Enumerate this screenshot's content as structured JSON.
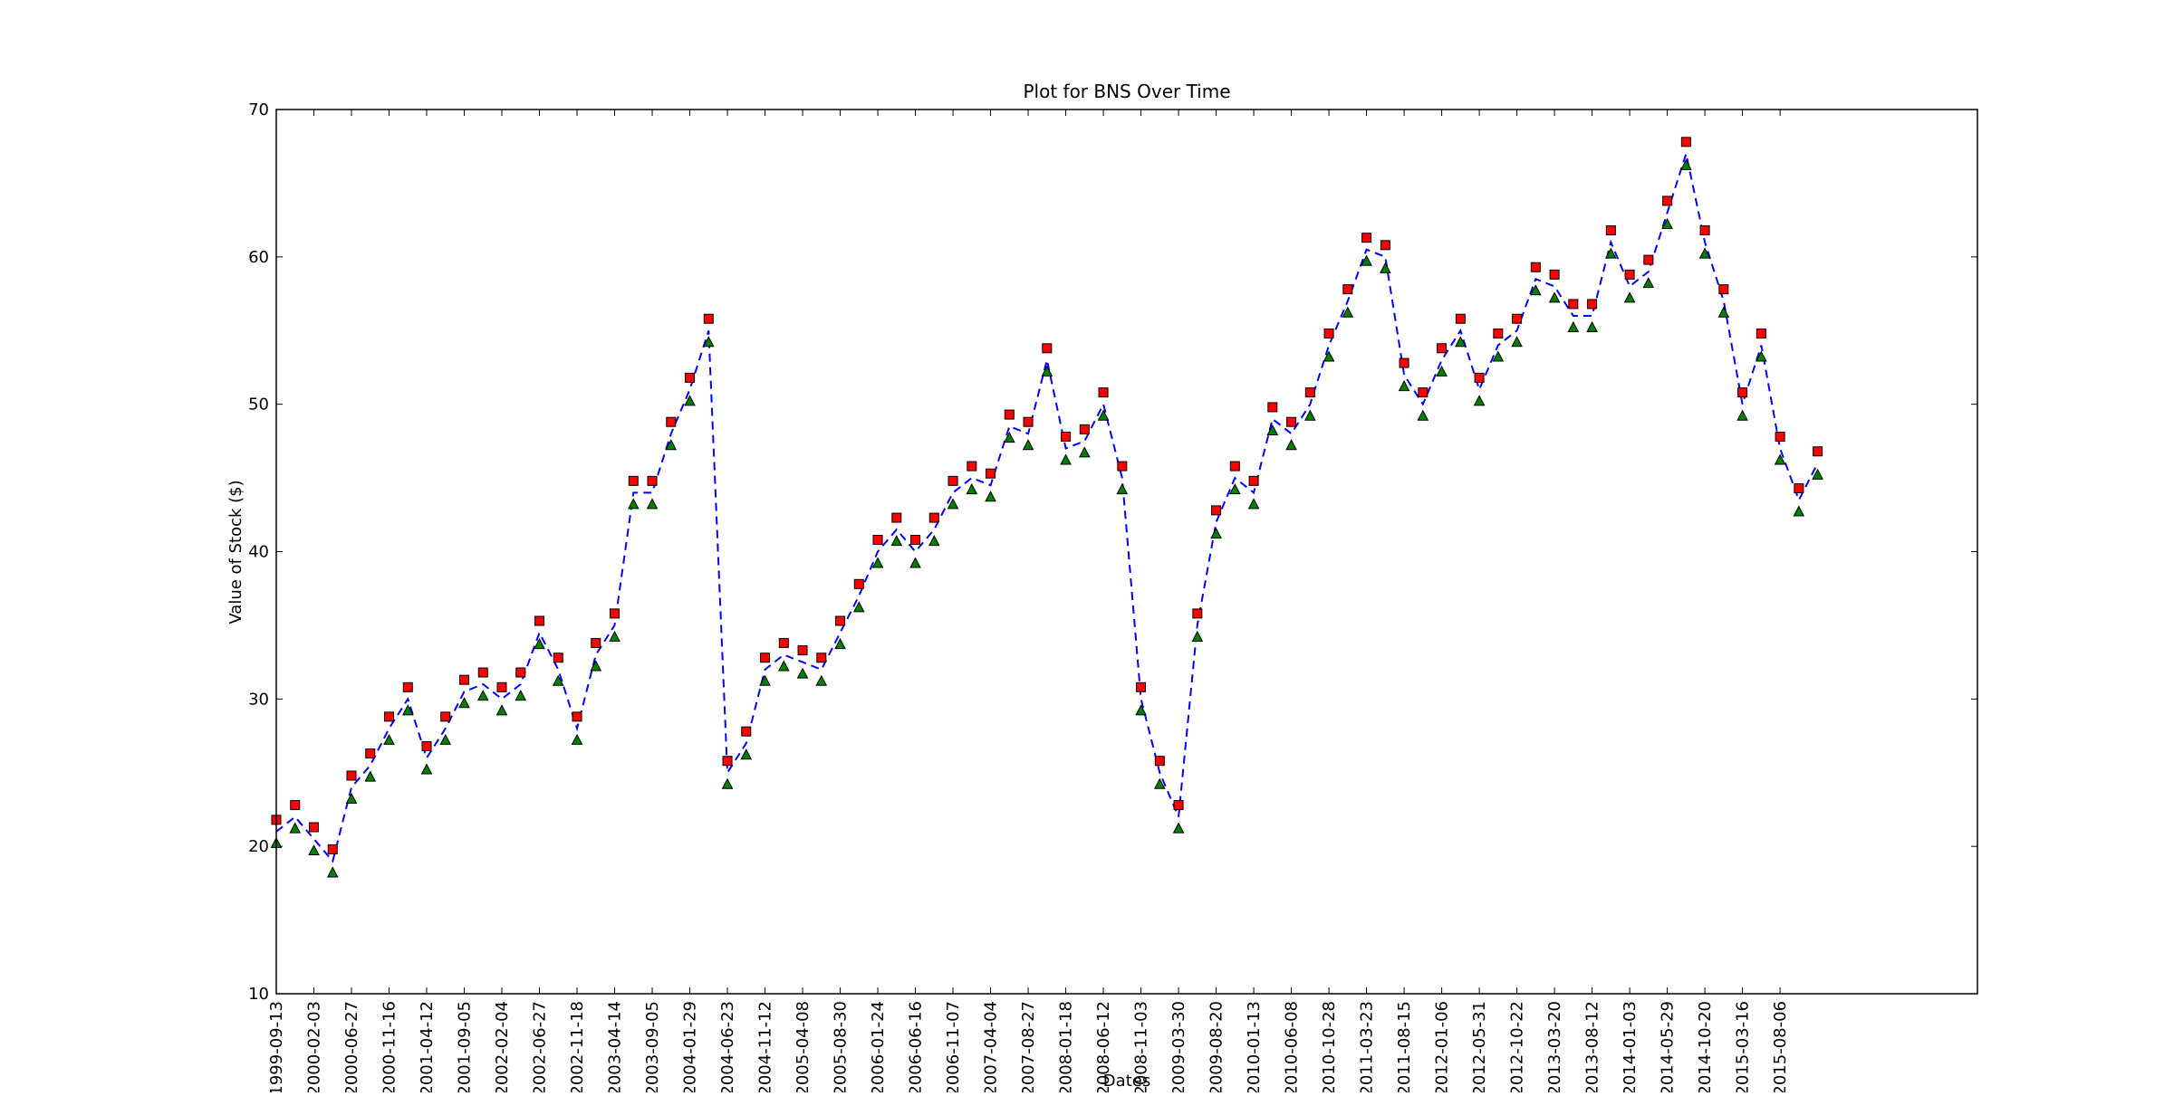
{
  "chart_data": {
    "type": "line",
    "title": "Plot for BNS Over Time",
    "xlabel": "Dates",
    "ylabel": "Value of Stock ($)",
    "categories": [
      "1999-09-13",
      null,
      "2000-02-03",
      null,
      "2000-06-27",
      null,
      "2000-11-16",
      null,
      "2001-04-12",
      null,
      "2001-09-05",
      null,
      "2002-02-04",
      null,
      "2002-06-27",
      null,
      "2002-11-18",
      null,
      "2003-04-14",
      null,
      "2003-09-05",
      null,
      "2004-01-29",
      null,
      "2004-06-23",
      null,
      "2004-11-12",
      null,
      "2005-04-08",
      null,
      "2005-08-30",
      null,
      "2006-01-24",
      null,
      "2006-06-16",
      null,
      "2006-11-07",
      null,
      "2007-04-04",
      null,
      "2007-08-27",
      null,
      "2008-01-18",
      null,
      "2008-06-12",
      null,
      "2008-11-03",
      null,
      "2009-03-30",
      null,
      "2009-08-20",
      null,
      "2010-01-13",
      null,
      "2010-06-08",
      null,
      "2010-10-28",
      null,
      "2011-03-23",
      null,
      "2011-08-15",
      null,
      "2012-01-06",
      null,
      "2012-05-31",
      null,
      "2012-10-22",
      null,
      "2013-03-20",
      null,
      "2013-08-12",
      null,
      "2014-01-03",
      null,
      "2014-05-29",
      null,
      "2014-10-20",
      null,
      "2015-03-16",
      null,
      "2015-08-06",
      null,
      null
    ],
    "series": [
      {
        "color": "#0000ff",
        "linestyle": "dashed",
        "marker": "none",
        "values": [
          21,
          22,
          20.5,
          19,
          24,
          25.5,
          28,
          30,
          26,
          28,
          30.5,
          31,
          30,
          31,
          34.5,
          32,
          28,
          33,
          35,
          44,
          44,
          48,
          51,
          55,
          25,
          27,
          32,
          33,
          32.5,
          32,
          34.5,
          37,
          40,
          41.5,
          40,
          41.5,
          44,
          45,
          44.5,
          48.5,
          48,
          53,
          47,
          47.5,
          50,
          45,
          30,
          25,
          22,
          35,
          42,
          45,
          44,
          49,
          48,
          50,
          54,
          57,
          60.5,
          60,
          52,
          50,
          53,
          55,
          51,
          54,
          55,
          58.5,
          58,
          56,
          56,
          61,
          58,
          59,
          63,
          67,
          61,
          57,
          50,
          54,
          47,
          43.5,
          46
        ]
      },
      {
        "color": "#ff0000",
        "linestyle": "none",
        "marker": "square",
        "values": [
          21.8,
          22.8,
          21.3,
          19.8,
          24.8,
          26.3,
          28.8,
          30.8,
          26.8,
          28.8,
          31.3,
          31.8,
          30.8,
          31.8,
          35.3,
          32.8,
          28.8,
          33.8,
          35.8,
          44.8,
          44.8,
          48.8,
          51.8,
          55.8,
          25.8,
          27.8,
          32.8,
          33.8,
          33.3,
          32.8,
          35.3,
          37.8,
          40.8,
          42.3,
          40.8,
          42.3,
          44.8,
          45.8,
          45.3,
          49.3,
          48.8,
          53.8,
          47.8,
          48.3,
          50.8,
          45.8,
          30.8,
          25.8,
          22.8,
          35.8,
          42.8,
          45.8,
          44.8,
          49.8,
          48.8,
          50.8,
          54.8,
          57.8,
          61.3,
          60.8,
          52.8,
          50.8,
          53.8,
          55.8,
          51.8,
          54.8,
          55.8,
          59.3,
          58.8,
          56.8,
          56.8,
          61.8,
          58.8,
          59.8,
          63.8,
          67.8,
          61.8,
          57.8,
          50.8,
          54.8,
          47.8,
          44.3,
          46.8
        ]
      },
      {
        "color": "#008000",
        "linestyle": "none",
        "marker": "triangle",
        "values": [
          20.2,
          21.2,
          19.7,
          18.2,
          23.2,
          24.7,
          27.2,
          29.2,
          25.2,
          27.2,
          29.7,
          30.2,
          29.2,
          30.2,
          33.7,
          31.2,
          27.2,
          32.2,
          34.2,
          43.2,
          43.2,
          47.2,
          50.2,
          54.2,
          24.2,
          26.2,
          31.2,
          32.2,
          31.7,
          31.2,
          33.7,
          36.2,
          39.2,
          40.7,
          39.2,
          40.7,
          43.2,
          44.2,
          43.7,
          47.7,
          47.2,
          52.2,
          46.2,
          46.7,
          49.2,
          44.2,
          29.2,
          24.2,
          21.2,
          34.2,
          41.2,
          44.2,
          43.2,
          48.2,
          47.2,
          49.2,
          53.2,
          56.2,
          59.7,
          59.2,
          51.2,
          49.2,
          52.2,
          54.2,
          50.2,
          53.2,
          54.2,
          57.7,
          57.2,
          55.2,
          55.2,
          60.2,
          57.2,
          58.2,
          62.2,
          66.2,
          60.2,
          56.2,
          49.2,
          53.2,
          46.2,
          42.7,
          45.2
        ]
      }
    ],
    "xlim": [
      0,
      90.5
    ],
    "ylim": [
      10,
      70
    ],
    "yticks": [
      10,
      20,
      30,
      40,
      50,
      60,
      70
    ],
    "grid": false
  }
}
